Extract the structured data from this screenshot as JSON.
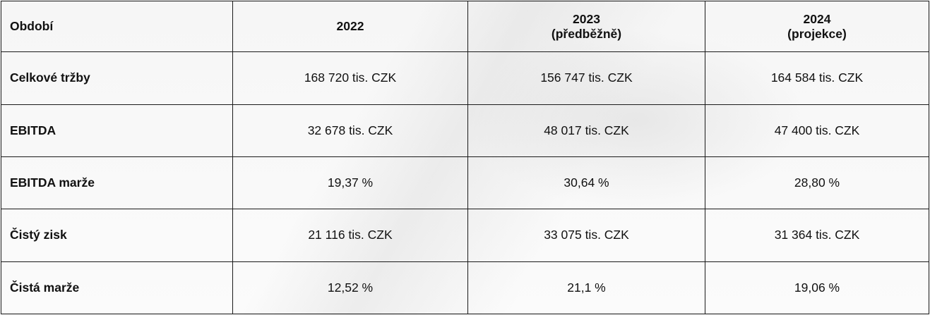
{
  "table": {
    "headers": [
      {
        "label": "Období",
        "sub": ""
      },
      {
        "label": "2022",
        "sub": ""
      },
      {
        "label": "2023",
        "sub": "(předběžně)"
      },
      {
        "label": "2024",
        "sub": "(projekce)"
      }
    ],
    "rows": [
      {
        "label": "Celkové tržby",
        "values": [
          "168 720 tis. CZK",
          "156 747 tis. CZK",
          "164 584 tis. CZK"
        ]
      },
      {
        "label": "EBITDA",
        "values": [
          "32 678 tis. CZK",
          "48 017 tis. CZK",
          "47 400 tis. CZK"
        ]
      },
      {
        "label": "EBITDA marže",
        "values": [
          "19,37 %",
          "30,64 %",
          "28,80 %"
        ]
      },
      {
        "label": "Čistý zisk",
        "values": [
          "21 116 tis. CZK",
          "33 075 tis. CZK",
          "31 364 tis. CZK"
        ]
      },
      {
        "label": "Čistá marže",
        "values": [
          "12,52 %",
          "21,1 %",
          "19,06 %"
        ]
      }
    ]
  }
}
